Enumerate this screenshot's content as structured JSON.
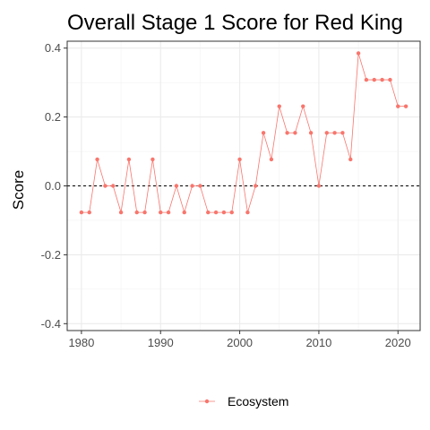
{
  "chart_data": {
    "type": "line",
    "title": "Overall Stage 1 Score for Red King",
    "xlabel": "",
    "ylabel": "Score",
    "xlim": [
      1978.2,
      2022.8
    ],
    "ylim": [
      -0.42,
      0.42
    ],
    "x_ticks": [
      1980,
      1990,
      2000,
      2010,
      2020
    ],
    "x_tick_labels": [
      "1980",
      "1990",
      "2000",
      "2010",
      "2020"
    ],
    "y_ticks": [
      0.4,
      0.2,
      0.0,
      -0.2,
      -0.4
    ],
    "y_tick_labels": [
      "0.4",
      "0.2",
      "0.0",
      "-0.2",
      "-0.4"
    ],
    "reference_line": {
      "y": 0,
      "style": "dashed",
      "color": "#000000"
    },
    "grid": true,
    "legend_position": "bottom",
    "series": [
      {
        "name": "Ecosystem",
        "color": "#F8766D",
        "x": [
          1980,
          1981,
          1982,
          1983,
          1984,
          1985,
          1986,
          1987,
          1988,
          1989,
          1990,
          1991,
          1992,
          1993,
          1994,
          1995,
          1996,
          1997,
          1998,
          1999,
          2000,
          2001,
          2002,
          2003,
          2004,
          2005,
          2006,
          2007,
          2008,
          2009,
          2010,
          2011,
          2012,
          2013,
          2014,
          2015,
          2016,
          2017,
          2018,
          2019,
          2020,
          2021
        ],
        "values": [
          -0.077,
          -0.077,
          0.077,
          0.0,
          0.0,
          -0.077,
          0.077,
          -0.077,
          -0.077,
          0.077,
          -0.077,
          -0.077,
          0.0,
          -0.077,
          0.0,
          0.0,
          -0.077,
          -0.077,
          -0.077,
          -0.077,
          0.077,
          -0.077,
          0.0,
          0.154,
          0.077,
          0.231,
          0.154,
          0.154,
          0.231,
          0.154,
          0.0,
          0.154,
          0.154,
          0.154,
          0.077,
          0.385,
          0.308,
          0.308,
          0.308,
          0.308,
          0.231,
          0.231
        ]
      }
    ]
  }
}
